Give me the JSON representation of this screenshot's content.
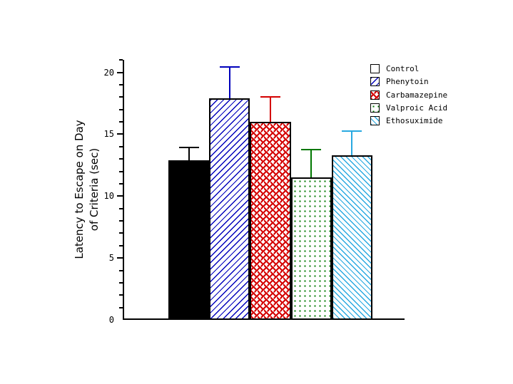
{
  "chart_data": {
    "type": "bar",
    "title": "",
    "xlabel": "",
    "ylabel": "Latency to Escape on Day of Criteria (sec)",
    "ylabel_line1": "Latency to Escape on Day",
    "ylabel_line2": "of Criteria (sec)",
    "ylim": [
      0,
      21
    ],
    "yticks_major": [
      0,
      5,
      10,
      15,
      20
    ],
    "ytick_labels": [
      "0",
      "5",
      "10",
      "15",
      "20"
    ],
    "minor_tick_interval": 1,
    "grid": false,
    "legend_position": "upper-right",
    "categories": [
      "Control",
      "Phenytoin",
      "Carbamazepine",
      "Valproic Acid",
      "Ethosuximide"
    ],
    "values": [
      12.9,
      17.9,
      16.0,
      11.5,
      13.3
    ],
    "error_plus": [
      1.1,
      2.6,
      2.1,
      2.3,
      2.0
    ],
    "colors": [
      "#000000",
      "#0000bb",
      "#d40000",
      "#007700",
      "#29a9e1"
    ],
    "patterns": [
      "solid",
      "diagonal-up",
      "dash-weave",
      "dots",
      "diagonal-down"
    ]
  }
}
